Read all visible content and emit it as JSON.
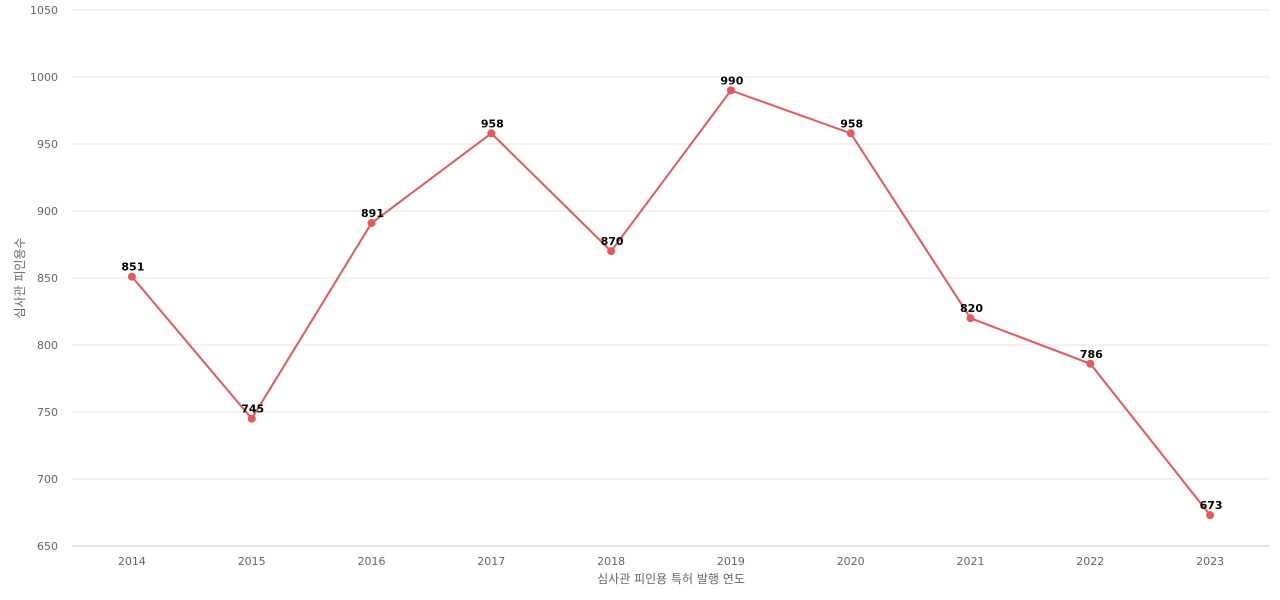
{
  "chart_data": {
    "type": "line",
    "categories": [
      "2014",
      "2015",
      "2016",
      "2017",
      "2018",
      "2019",
      "2020",
      "2021",
      "2022",
      "2023"
    ],
    "series": [
      {
        "values": [
          851,
          745,
          891,
          958,
          870,
          990,
          958,
          820,
          786,
          673
        ]
      }
    ],
    "title": "",
    "xlabel": "심사관 피인용 특허 발행 연도",
    "ylabel": "심사관 피인용수",
    "ylim": [
      650,
      1050
    ],
    "yticks": [
      650,
      700,
      750,
      800,
      850,
      900,
      950,
      1000,
      1050
    ],
    "grid": true,
    "data_labels": true,
    "colors": {
      "series": "#e8585a"
    }
  }
}
